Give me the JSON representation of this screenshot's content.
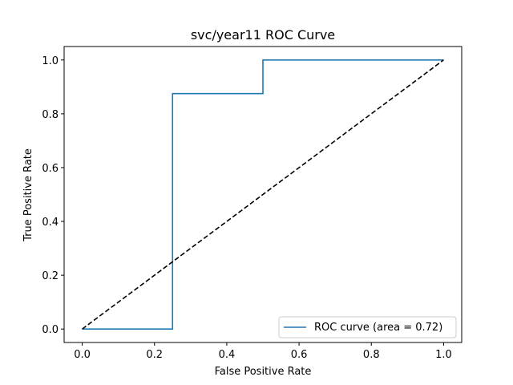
{
  "chart_data": {
    "type": "line",
    "title": "svc/year11 ROC Curve",
    "xlabel": "False Positive Rate",
    "ylabel": "True Positive Rate",
    "xlim": [
      -0.05,
      1.05
    ],
    "ylim": [
      -0.05,
      1.05
    ],
    "xticks": [
      0.0,
      0.2,
      0.4,
      0.6,
      0.8,
      1.0
    ],
    "yticks": [
      0.0,
      0.2,
      0.4,
      0.6,
      0.8,
      1.0
    ],
    "xtick_labels": [
      "0.0",
      "0.2",
      "0.4",
      "0.6",
      "0.8",
      "1.0"
    ],
    "ytick_labels": [
      "0.0",
      "0.2",
      "0.4",
      "0.6",
      "0.8",
      "1.0"
    ],
    "grid": false,
    "legend_position": "lower-right",
    "series": [
      {
        "name": "ROC curve (area = 0.72)",
        "color": "#1f77b4",
        "style": "solid",
        "x": [
          0.0,
          0.25,
          0.25,
          0.5,
          0.5,
          1.0
        ],
        "y": [
          0.0,
          0.0,
          0.875,
          0.875,
          1.0,
          1.0
        ]
      },
      {
        "color": "#000000",
        "style": "dashed",
        "x": [
          0.0,
          1.0
        ],
        "y": [
          0.0,
          1.0
        ]
      }
    ]
  }
}
